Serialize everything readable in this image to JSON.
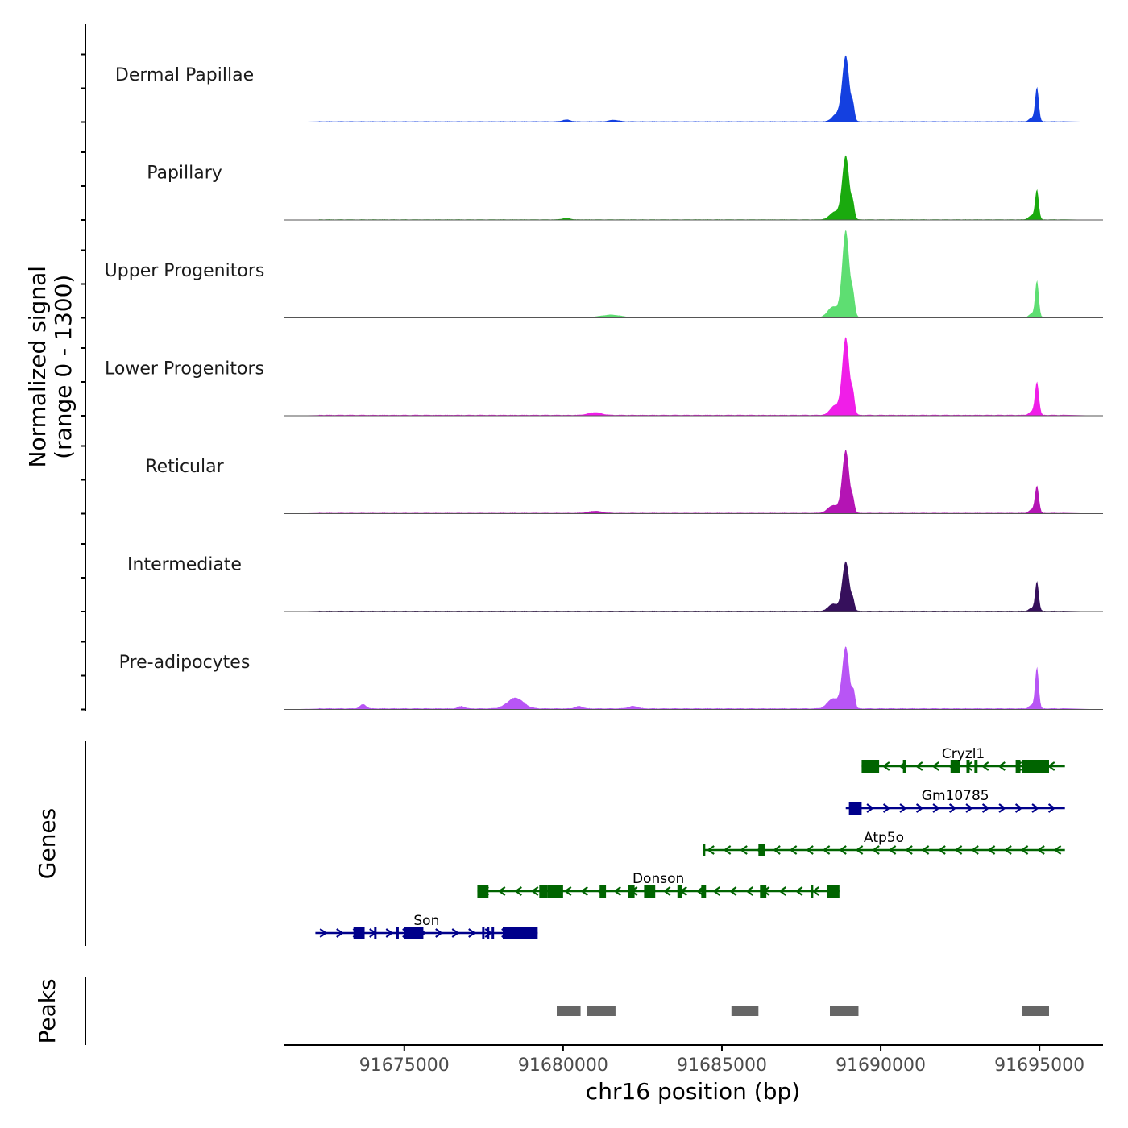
{
  "chart_data": {
    "type": "area",
    "title": "",
    "coverage_ylabel": "Normalized signal\n(range 0 - 1300)",
    "ylim": [
      0,
      1300
    ],
    "xlabel": "chr16 position (bp)",
    "xlim": [
      91671200,
      91697000
    ],
    "x_ticks": [
      91675000,
      91680000,
      91685000,
      91690000,
      91695000
    ],
    "x_tick_labels": [
      "91675000",
      "91680000",
      "91685000",
      "91690000",
      "91695000"
    ],
    "tracks": [
      {
        "name": "Dermal Papillae",
        "color": "#1440E0",
        "background": 15,
        "peaks": [
          [
            91688900,
            1100,
            110
          ],
          [
            91689130,
            230,
            50
          ],
          [
            91688600,
            120,
            130
          ],
          [
            91694920,
            580,
            55
          ],
          [
            91694750,
            60,
            80
          ],
          [
            91680100,
            30,
            120
          ],
          [
            91681600,
            25,
            150
          ]
        ]
      },
      {
        "name": "Papillary",
        "color": "#1AAA0E",
        "background": 12,
        "peaks": [
          [
            91688900,
            1070,
            110
          ],
          [
            91689130,
            220,
            50
          ],
          [
            91688550,
            130,
            150
          ],
          [
            91694920,
            500,
            55
          ],
          [
            91694750,
            70,
            90
          ],
          [
            91680100,
            25,
            120
          ]
        ]
      },
      {
        "name": "Upper Progenitors",
        "color": "#5EDE72",
        "background": 15,
        "peaks": [
          [
            91688900,
            1450,
            110
          ],
          [
            91689130,
            320,
            60
          ],
          [
            91688500,
            180,
            160
          ],
          [
            91694920,
            620,
            55
          ],
          [
            91694750,
            60,
            80
          ],
          [
            91681500,
            40,
            300
          ]
        ]
      },
      {
        "name": "Lower Progenitors",
        "color": "#F01EE8",
        "background": 18,
        "peaks": [
          [
            91688900,
            1300,
            110
          ],
          [
            91689130,
            300,
            55
          ],
          [
            91688550,
            160,
            140
          ],
          [
            91694920,
            560,
            60
          ],
          [
            91694750,
            60,
            80
          ],
          [
            91681000,
            45,
            200
          ]
        ]
      },
      {
        "name": "Reticular",
        "color": "#B414B4",
        "background": 15,
        "peaks": [
          [
            91688900,
            1050,
            110
          ],
          [
            91689130,
            180,
            50
          ],
          [
            91688500,
            130,
            160
          ],
          [
            91694920,
            460,
            60
          ],
          [
            91694750,
            60,
            80
          ],
          [
            91681000,
            35,
            200
          ]
        ]
      },
      {
        "name": "Intermediate",
        "color": "#36105C",
        "background": 15,
        "peaks": [
          [
            91688900,
            830,
            110
          ],
          [
            91689130,
            150,
            50
          ],
          [
            91688500,
            120,
            140
          ],
          [
            91694920,
            500,
            55
          ],
          [
            91694750,
            50,
            80
          ]
        ]
      },
      {
        "name": "Pre-adipocytes",
        "color": "#B855F5",
        "background": 22,
        "peaks": [
          [
            91688900,
            1030,
            110
          ],
          [
            91689150,
            260,
            50
          ],
          [
            91688500,
            170,
            170
          ],
          [
            91694920,
            700,
            55
          ],
          [
            91694750,
            60,
            80
          ],
          [
            91678500,
            180,
            250
          ],
          [
            91673700,
            70,
            100
          ],
          [
            91676800,
            40,
            100
          ],
          [
            91680500,
            40,
            120
          ],
          [
            91682200,
            40,
            150
          ]
        ]
      }
    ],
    "genes_ylabel": "Genes",
    "genes": [
      {
        "name": "Cryzl1",
        "strand": "-",
        "color": "#006400",
        "start": 91689400,
        "end": 91695800,
        "exons": [
          [
            91689400,
            91689950
          ],
          [
            91690700,
            91690800
          ],
          [
            91692200,
            91692500
          ],
          [
            91692700,
            91692800
          ],
          [
            91692950,
            91693050
          ],
          [
            91694250,
            91694400
          ],
          [
            91694450,
            91695300
          ]
        ]
      },
      {
        "name": "Gm10785",
        "strand": "+",
        "color": "#00008B",
        "start": 91688900,
        "end": 91695800,
        "exons": [
          [
            91689000,
            91689400
          ]
        ]
      },
      {
        "name": "Atp5o",
        "strand": "-",
        "color": "#006400",
        "start": 91684400,
        "end": 91695800,
        "exons": [
          [
            91684400,
            91684450
          ],
          [
            91686150,
            91686350
          ]
        ]
      },
      {
        "name": "Donson",
        "strand": "-",
        "color": "#006400",
        "start": 91677300,
        "end": 91688700,
        "exons": [
          [
            91677300,
            91677650
          ],
          [
            91679250,
            91679500
          ],
          [
            91679500,
            91680000
          ],
          [
            91681150,
            91681350
          ],
          [
            91682050,
            91682250
          ],
          [
            91682550,
            91682900
          ],
          [
            91683600,
            91683750
          ],
          [
            91684350,
            91684500
          ],
          [
            91686200,
            91686400
          ],
          [
            91687800,
            91687850
          ],
          [
            91688300,
            91688700
          ]
        ]
      },
      {
        "name": "Son",
        "strand": "+",
        "color": "#00008B",
        "start": 91672200,
        "end": 91679200,
        "exons": [
          [
            91673400,
            91673750
          ],
          [
            91674050,
            91674100
          ],
          [
            91674750,
            91674800
          ],
          [
            91675000,
            91675600
          ],
          [
            91677450,
            91677500
          ],
          [
            91677600,
            91677650
          ],
          [
            91677750,
            91677800
          ],
          [
            91678100,
            91679200
          ]
        ]
      }
    ],
    "peaks_ylabel": "Peaks",
    "peak_regions": [
      [
        91679800,
        91680550
      ],
      [
        91680750,
        91681650
      ],
      [
        91685300,
        91686150
      ],
      [
        91688400,
        91689300
      ],
      [
        91694450,
        91695300
      ]
    ],
    "peak_color": "#666666"
  }
}
